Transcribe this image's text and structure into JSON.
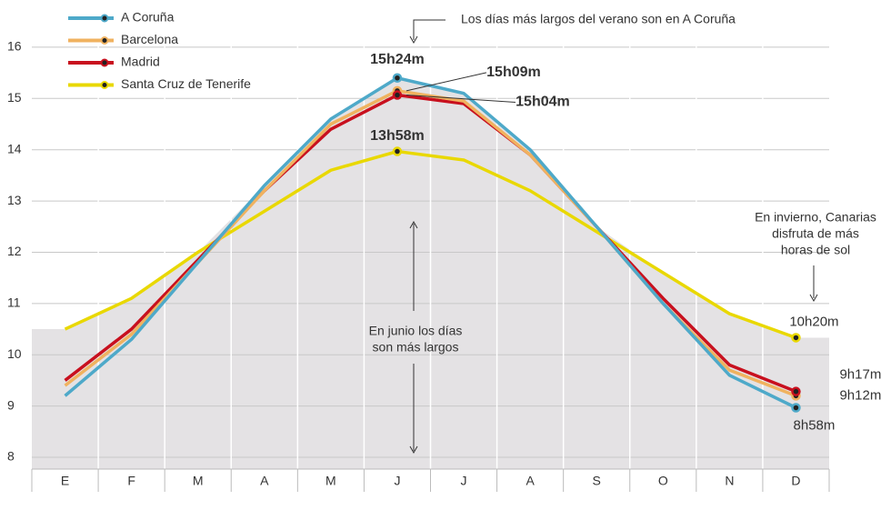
{
  "chart_data": {
    "type": "line",
    "categories": [
      "E",
      "F",
      "M",
      "A",
      "M",
      "J",
      "J",
      "A",
      "S",
      "O",
      "N",
      "D"
    ],
    "series": [
      {
        "name": "A Coruña",
        "color": "#4ea9c9",
        "values": [
          9.2,
          10.3,
          11.8,
          13.3,
          14.6,
          15.4,
          15.1,
          14.0,
          12.5,
          11.0,
          9.6,
          8.967
        ],
        "value_labels": [
          null,
          null,
          null,
          null,
          null,
          "15h24m",
          null,
          null,
          null,
          null,
          null,
          "8h58m"
        ]
      },
      {
        "name": "Barcelona",
        "color": "#f0b25f",
        "values": [
          9.4,
          10.4,
          11.8,
          13.2,
          14.5,
          15.15,
          14.95,
          13.9,
          12.5,
          11.0,
          9.7,
          9.2
        ],
        "value_labels": [
          null,
          null,
          null,
          null,
          null,
          "15h09m",
          null,
          null,
          null,
          null,
          null,
          "9h12m"
        ]
      },
      {
        "name": "Madrid",
        "color": "#c8101e",
        "values": [
          9.5,
          10.5,
          11.85,
          13.2,
          14.4,
          15.067,
          14.9,
          13.9,
          12.5,
          11.1,
          9.8,
          9.283
        ],
        "value_labels": [
          null,
          null,
          null,
          null,
          null,
          "15h04m",
          null,
          null,
          null,
          null,
          null,
          "9h17m"
        ]
      },
      {
        "name": "Santa Cruz de Tenerife",
        "color": "#e9d800",
        "values": [
          10.5,
          11.1,
          12.0,
          12.8,
          13.6,
          13.967,
          13.8,
          13.2,
          12.4,
          11.6,
          10.8,
          10.333
        ],
        "value_labels": [
          null,
          null,
          null,
          null,
          null,
          "13h58m",
          null,
          null,
          null,
          null,
          null,
          "10h20m"
        ]
      }
    ],
    "ylim": [
      7.77,
      16.3
    ],
    "yticks": [
      8,
      9,
      10,
      11,
      12,
      13,
      14,
      15,
      16
    ],
    "grid": true,
    "legend": "top-left",
    "annotations": {
      "summer": "Los días más largos del verano son en A Coruña",
      "winter": [
        "En invierno, Canarias",
        "disfruta de más",
        "horas de sol"
      ],
      "june": [
        "En junio los días",
        "son más largos"
      ]
    }
  }
}
